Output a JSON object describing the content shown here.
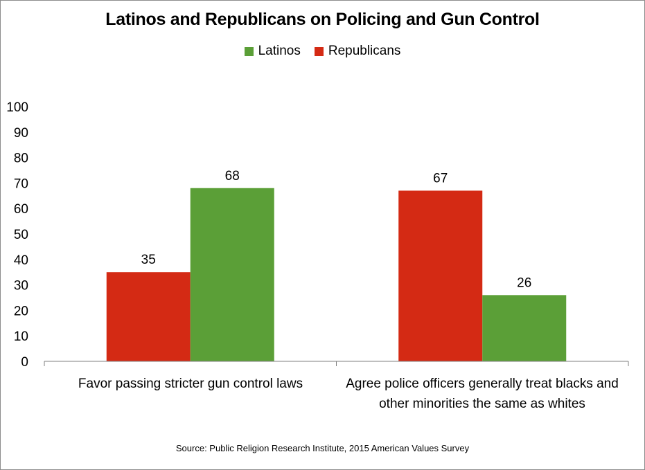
{
  "colors": {
    "latinos": "#5b9f37",
    "republicans": "#d42a14",
    "axis": "#7f7f7f"
  },
  "chart_data": {
    "type": "bar",
    "title": "Latinos and Republicans on Policing and Gun Control",
    "categories": [
      "Favor passing stricter gun control laws",
      "Agree police officers generally treat blacks and other minorities the same as whites"
    ],
    "series": [
      {
        "name": "Republicans",
        "values": [
          35,
          67
        ]
      },
      {
        "name": "Latinos",
        "values": [
          68,
          26
        ]
      }
    ],
    "legend": [
      {
        "name": "Latinos"
      },
      {
        "name": "Republicans"
      }
    ],
    "legend_position": "top",
    "ylim": [
      0,
      100
    ],
    "yticks": [
      0,
      10,
      20,
      30,
      40,
      50,
      60,
      70,
      80,
      90,
      100
    ],
    "grid": false,
    "source": "Source: Public Religion Research Institute, 2015 American Values Survey"
  }
}
